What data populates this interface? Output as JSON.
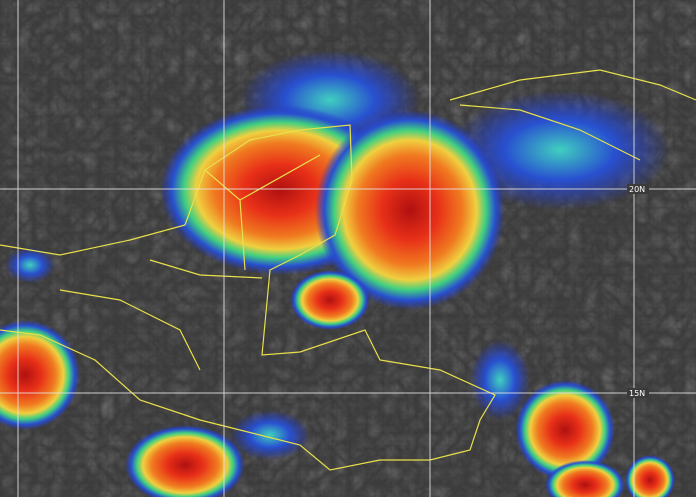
{
  "image": {
    "type": "infrared satellite imagery",
    "colors": {
      "background": "#3a3a3a",
      "coast": "#e8e04a",
      "grid": "#e6e6e6",
      "cold_blue": "#2438c8",
      "green": "#3cd07a",
      "yellow": "#f0e040",
      "orange": "#f08020",
      "red": "#e02818"
    }
  },
  "grid_labels": {
    "lat_20": "20N",
    "lat_15": "15N"
  }
}
